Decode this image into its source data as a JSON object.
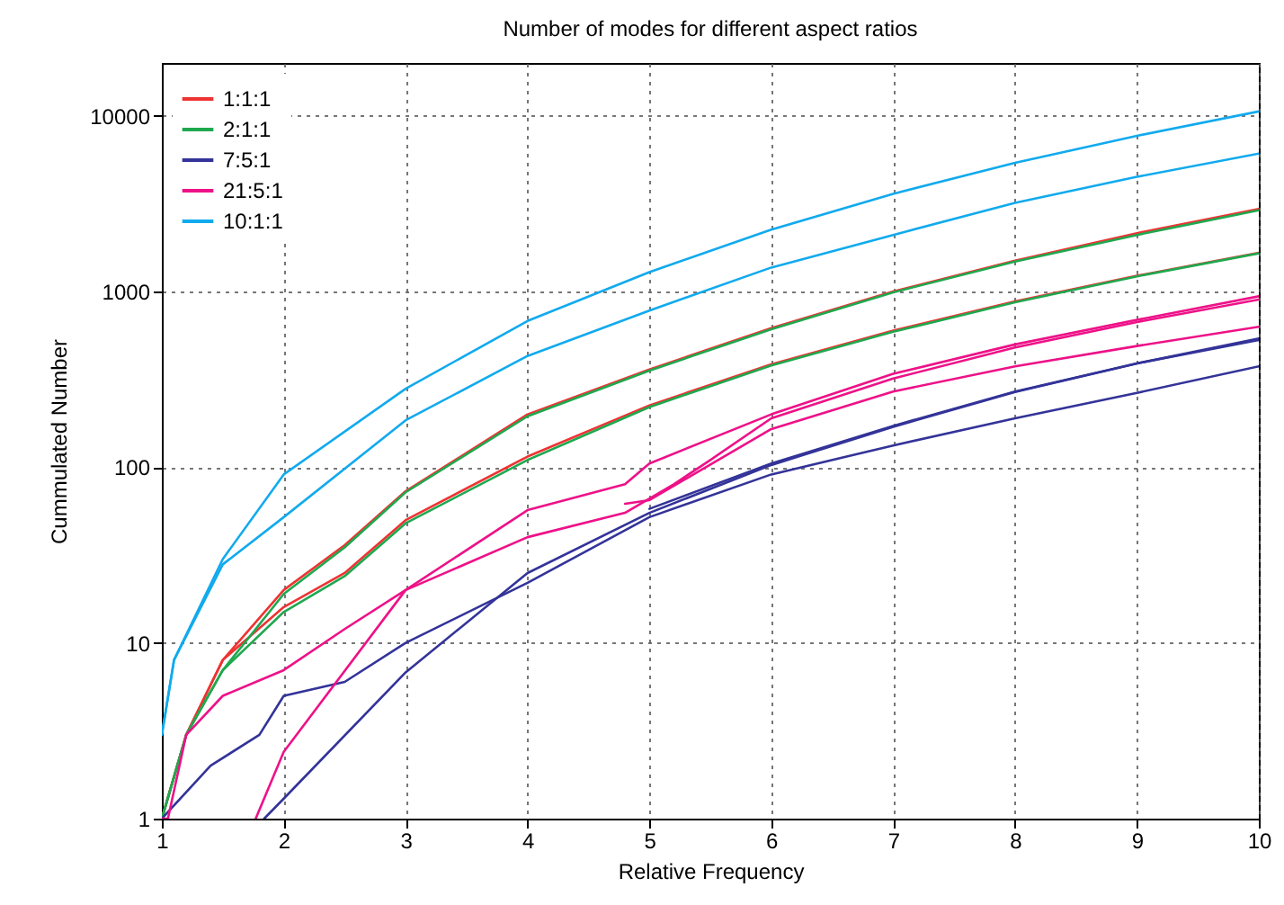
{
  "chart_data": {
    "type": "line",
    "title": "Number of modes for different aspect ratios",
    "xlabel": "Relative Frequency",
    "ylabel": "Cummulated Number",
    "xlim": [
      1,
      10
    ],
    "xticks": [
      1,
      2,
      3,
      4,
      5,
      6,
      7,
      8,
      9,
      10
    ],
    "ylim": [
      1,
      20000
    ],
    "yticks": [
      1,
      10,
      100,
      1000,
      10000
    ],
    "log": "y",
    "grid": true,
    "legend": "top left",
    "marker": "none",
    "line_style": "solid",
    "series": [
      {
        "name": "1:1:1",
        "color": "#ee3333",
        "x": [
          1,
          1.2,
          1.5,
          2,
          2.5,
          3,
          4,
          5,
          6,
          7,
          8,
          9,
          10
        ],
        "values": [
          1,
          3,
          8,
          20,
          36,
          73,
          200,
          360,
          620,
          1000,
          1500,
          2150,
          2950
        ]
      },
      {
        "color": "#ee3333",
        "x": [
          1,
          1.2,
          1.5,
          2,
          2.5,
          3,
          4,
          5,
          6,
          7,
          8,
          9,
          10
        ],
        "values": [
          1,
          3,
          8,
          16,
          25,
          50,
          115,
          225,
          385,
          600,
          880,
          1230,
          1660
        ]
      },
      {
        "name": "2:1:1",
        "color": "#1fa84f",
        "x": [
          1,
          1.2,
          1.5,
          2,
          2.5,
          3,
          4,
          5,
          6,
          7,
          8,
          9,
          10
        ],
        "values": [
          1,
          3,
          7,
          19,
          35,
          72,
          195,
          355,
          610,
          990,
          1480,
          2100,
          2900
        ]
      },
      {
        "color": "#1fa84f",
        "x": [
          1,
          1.2,
          1.5,
          2,
          2.5,
          3,
          4,
          5,
          6,
          7,
          8,
          9,
          10
        ],
        "values": [
          1,
          3,
          7,
          15,
          24,
          48,
          110,
          220,
          380,
          590,
          870,
          1220,
          1650
        ]
      },
      {
        "name": "7:5:1",
        "color": "#333399",
        "x": [
          1,
          1.4,
          1.8,
          2,
          2.5,
          3,
          4,
          5,
          6,
          7,
          8,
          9,
          10
        ],
        "values": [
          1,
          2,
          3,
          5,
          6,
          10,
          22,
          52,
          91,
          133,
          190,
          265,
          375
        ]
      },
      {
        "color": "#333399",
        "x": [
          5,
          6,
          7,
          8,
          9,
          10
        ],
        "values": [
          58,
          105,
          172,
          270,
          390,
          530
        ]
      },
      {
        "color": "#333399",
        "x": [
          1.84,
          2,
          3,
          4,
          5,
          6,
          7,
          8,
          9,
          10
        ],
        "values": [
          1,
          1.3,
          6.8,
          25,
          55,
          103,
          170,
          268,
          390,
          540
        ]
      },
      {
        "name": "21:5:1",
        "color": "#ee1188",
        "x": [
          1,
          1.05,
          1.2,
          1.5,
          2,
          2.5,
          3,
          4,
          4.8,
          5.2,
          5.5,
          6,
          7,
          8,
          9,
          10
        ],
        "values": [
          1,
          1,
          3,
          5,
          7,
          12,
          20,
          40,
          55,
          80,
          110,
          190,
          320,
          480,
          670,
          900
        ]
      },
      {
        "color": "#ee1188",
        "x": [
          4.8,
          5,
          6,
          7,
          8,
          9,
          10
        ],
        "values": [
          62,
          65,
          165,
          270,
          375,
          490,
          630
        ]
      },
      {
        "color": "#ee1188",
        "x": [
          1.77,
          2,
          3,
          4,
          4.8,
          5,
          6,
          7,
          8,
          9,
          10
        ],
        "values": [
          1,
          2.4,
          20,
          57,
          80,
          105,
          200,
          340,
          500,
          690,
          940
        ]
      },
      {
        "name": "10:1:1",
        "color": "#11aaee",
        "x": [
          1,
          1.1,
          1.5,
          2,
          3,
          4,
          5,
          6,
          7,
          8,
          9,
          10
        ],
        "values": [
          3,
          8,
          30,
          91,
          280,
          680,
          1290,
          2250,
          3600,
          5400,
          7700,
          10600
        ]
      },
      {
        "color": "#11aaee",
        "x": [
          1,
          1.1,
          1.5,
          2,
          3,
          4,
          5,
          6,
          7,
          8,
          9,
          10
        ],
        "values": [
          3,
          8,
          28,
          52,
          185,
          430,
          780,
          1370,
          2100,
          3200,
          4500,
          6100
        ]
      }
    ]
  }
}
